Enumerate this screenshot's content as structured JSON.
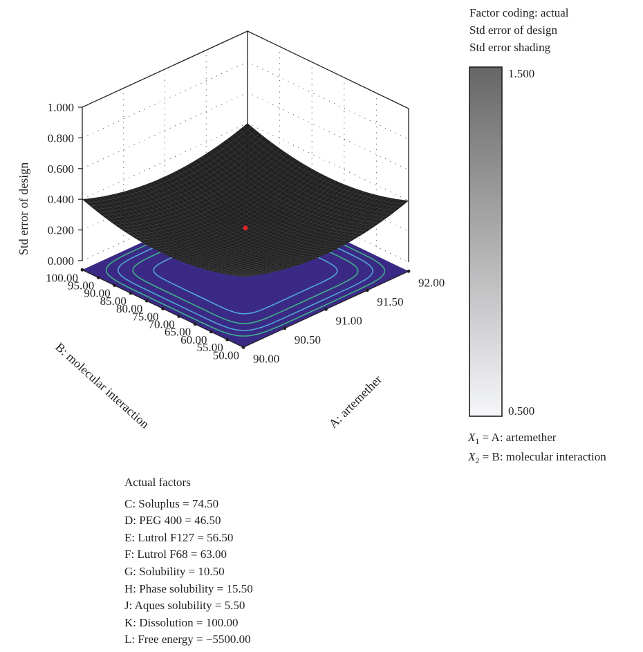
{
  "chart_data": {
    "type": "surface",
    "z_label": "Std error of design",
    "x_label": "A: artemether",
    "y_label": "B: molecular interaction",
    "z_ticks": [
      "0.000",
      "0.200",
      "0.400",
      "0.600",
      "0.800",
      "1.000"
    ],
    "x_ticks": [
      "90.00",
      "90.50",
      "91.00",
      "91.50",
      "92.00"
    ],
    "y_ticks": [
      "50.00",
      "55.00",
      "60.00",
      "65.00",
      "70.00",
      "75.00",
      "80.00",
      "85.00",
      "90.00",
      "95.00",
      "100.00"
    ],
    "x_range": [
      90,
      92
    ],
    "y_range": [
      50,
      100
    ],
    "z_range": [
      0,
      1
    ],
    "surface": {
      "center_value": 0.2,
      "corner_value": 0.4,
      "color": "#222222",
      "design_point_color": "#e8262b"
    },
    "contour_floor": {
      "fill": "#3b2a85",
      "contour_colors": [
        "#4fa6d6",
        "#3fb08a",
        "#4fa6d6",
        "#3fb08a"
      ]
    },
    "grid": true
  },
  "legend": {
    "lines": [
      "Factor coding: actual",
      "Std error of design",
      "Std error shading"
    ],
    "max_label": "1.500",
    "min_label": "0.500",
    "top_color": "#666666",
    "bottom_color": "#f6f7f9"
  },
  "factor_defs": {
    "x1_symbol": "X",
    "x1_sub": "1",
    "x1_text": " = A: artemether",
    "x2_symbol": "X",
    "x2_sub": "2",
    "x2_text": " = B: molecular interaction"
  },
  "actual_factors": {
    "title": "Actual factors",
    "items": [
      "C: Soluplus = 74.50",
      "D: PEG 400 = 46.50",
      "E: Lutrol F127 = 56.50",
      "F: Lutrol F68 = 63.00",
      "G: Solubility = 10.50",
      "H: Phase solubility = 15.50",
      "J: Aques solubility = 5.50",
      "K: Dissolution = 100.00",
      "L: Free energy = −5500.00"
    ]
  }
}
